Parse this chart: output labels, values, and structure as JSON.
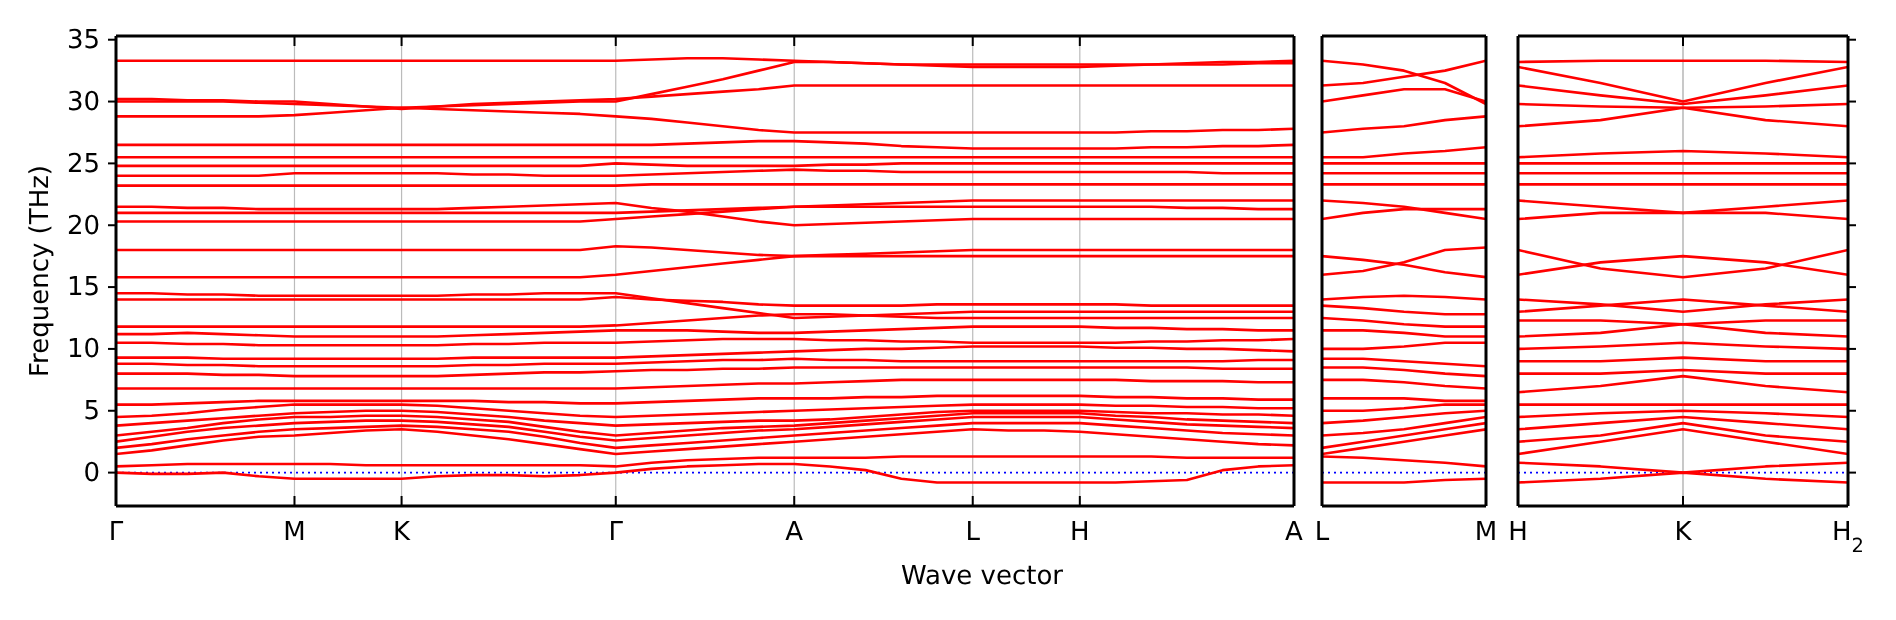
{
  "chart_data": [
    {
      "type": "line",
      "xlabel": "Wave vector",
      "ylabel": "Frequency (THz)",
      "grid": "x",
      "ylim": [
        -2.7,
        35.3
      ],
      "yticks": [
        0,
        5,
        10,
        15,
        20,
        25,
        30,
        35
      ],
      "categories": [
        "Γ",
        null,
        null,
        null,
        null,
        "M",
        null,
        null,
        "K",
        null,
        null,
        null,
        null,
        null,
        "Γ",
        null,
        null,
        null,
        null,
        "A",
        null,
        null,
        null,
        null,
        "L",
        null,
        null,
        "H",
        null,
        null,
        null,
        null,
        null,
        "A"
      ],
      "ref_lines": [
        {
          "axis": "y",
          "value": 0,
          "color": "#0000ff",
          "line_style": "dotted"
        }
      ],
      "series": [
        {
          "color": "#ff0000",
          "values": [
            0,
            -0.1,
            -0.1,
            0,
            -0.3,
            -0.5,
            -0.5,
            -0.5,
            -0.5,
            -0.3,
            -0.2,
            -0.2,
            -0.3,
            -0.2,
            0,
            0.3,
            0.5,
            0.6,
            0.7,
            0.7,
            0.5,
            0.2,
            -0.5,
            -0.8,
            -0.8,
            -0.8,
            -0.8,
            -0.8,
            -0.8,
            -0.7,
            -0.6,
            0.2,
            0.5,
            0.6
          ]
        },
        {
          "color": "#ff0000",
          "values": [
            0.5,
            0.6,
            0.7,
            0.7,
            0.7,
            0.7,
            0.7,
            0.6,
            0.6,
            0.6,
            0.6,
            0.6,
            0.6,
            0.6,
            0.5,
            0.8,
            1.0,
            1.1,
            1.2,
            1.2,
            1.2,
            1.2,
            1.3,
            1.3,
            1.3,
            1.3,
            1.3,
            1.3,
            1.3,
            1.3,
            1.2,
            1.2,
            1.2,
            1.2
          ]
        },
        {
          "color": "#ff0000",
          "values": [
            1.5,
            1.8,
            2.2,
            2.6,
            2.9,
            3.0,
            3.2,
            3.4,
            3.5,
            3.3,
            3,
            2.7,
            2.3,
            1.9,
            1.5,
            1.7,
            1.9,
            2.1,
            2.3,
            2.5,
            2.7,
            2.9,
            3.1,
            3.3,
            3.5,
            3.4,
            3.4,
            3.3,
            3.1,
            2.9,
            2.7,
            2.5,
            2.3,
            2.2
          ]
        },
        {
          "color": "#ff0000",
          "values": [
            2,
            2.3,
            2.7,
            3.0,
            3.3,
            3.5,
            3.6,
            3.7,
            3.8,
            3.7,
            3.5,
            3.3,
            2.9,
            2.4,
            2,
            2.2,
            2.4,
            2.6,
            2.8,
            3,
            3.2,
            3.4,
            3.6,
            3.8,
            4,
            4,
            4,
            4,
            3.8,
            3.6,
            3.4,
            3.2,
            3.1,
            3
          ]
        },
        {
          "color": "#ff0000",
          "values": [
            2.5,
            2.9,
            3.3,
            3.6,
            3.8,
            4,
            4.1,
            4.2,
            4.2,
            4.1,
            3.9,
            3.7,
            3.3,
            2.9,
            2.6,
            2.8,
            3,
            3.2,
            3.4,
            3.5,
            3.7,
            3.9,
            4.1,
            4.3,
            4.5,
            4.5,
            4.5,
            4.5,
            4.3,
            4.1,
            3.9,
            3.8,
            3.7,
            3.6
          ]
        },
        {
          "color": "#ff0000",
          "values": [
            3,
            3.3,
            3.6,
            4,
            4.3,
            4.5,
            4.5,
            4.6,
            4.6,
            4.5,
            4.3,
            4.1,
            3.7,
            3.3,
            3,
            3.2,
            3.4,
            3.6,
            3.7,
            3.8,
            4,
            4.2,
            4.4,
            4.6,
            4.8,
            4.8,
            4.8,
            4.8,
            4.6,
            4.5,
            4.3,
            4.2,
            4.1,
            4
          ]
        },
        {
          "color": "#ff0000",
          "values": [
            3.8,
            4,
            4.2,
            4.4,
            4.6,
            4.8,
            4.9,
            5,
            5,
            4.9,
            4.7,
            4.5,
            4.2,
            4,
            3.8,
            3.9,
            4,
            4.1,
            4.2,
            4.2,
            4.3,
            4.5,
            4.7,
            4.9,
            5,
            5,
            5,
            5,
            4.9,
            4.8,
            4.8,
            4.7,
            4.7,
            4.6
          ]
        },
        {
          "color": "#ff0000",
          "values": [
            4.5,
            4.6,
            4.8,
            5.1,
            5.3,
            5.5,
            5.5,
            5.5,
            5.5,
            5.4,
            5.2,
            5,
            4.8,
            4.6,
            4.5,
            4.6,
            4.7,
            4.8,
            4.9,
            5,
            5.1,
            5.2,
            5.3,
            5.4,
            5.5,
            5.5,
            5.5,
            5.5,
            5.4,
            5.4,
            5.3,
            5.3,
            5.2,
            5.2
          ]
        },
        {
          "color": "#ff0000",
          "values": [
            5.5,
            5.5,
            5.6,
            5.7,
            5.8,
            5.8,
            5.8,
            5.8,
            5.8,
            5.8,
            5.8,
            5.7,
            5.7,
            5.6,
            5.6,
            5.7,
            5.8,
            5.9,
            6,
            6,
            6,
            6.1,
            6.1,
            6.2,
            6.2,
            6.2,
            6.2,
            6.2,
            6.1,
            6.1,
            6,
            6,
            5.9,
            5.9
          ]
        },
        {
          "color": "#ff0000",
          "values": [
            6.8,
            6.8,
            6.8,
            6.8,
            6.8,
            6.8,
            6.8,
            6.8,
            6.8,
            6.8,
            6.8,
            6.8,
            6.8,
            6.8,
            6.8,
            6.9,
            7,
            7.1,
            7.2,
            7.2,
            7.3,
            7.4,
            7.5,
            7.5,
            7.5,
            7.5,
            7.5,
            7.5,
            7.5,
            7.4,
            7.4,
            7.4,
            7.3,
            7.3
          ]
        },
        {
          "color": "#ff0000",
          "values": [
            8,
            8,
            8,
            7.9,
            7.9,
            7.8,
            7.8,
            7.8,
            7.8,
            7.8,
            7.9,
            8,
            8.1,
            8.1,
            8.2,
            8.3,
            8.3,
            8.4,
            8.4,
            8.5,
            8.5,
            8.5,
            8.5,
            8.5,
            8.5,
            8.5,
            8.5,
            8.5,
            8.5,
            8.5,
            8.5,
            8.4,
            8.4,
            8.4
          ]
        },
        {
          "color": "#ff0000",
          "values": [
            8.8,
            8.8,
            8.7,
            8.7,
            8.6,
            8.6,
            8.6,
            8.6,
            8.6,
            8.6,
            8.7,
            8.7,
            8.8,
            8.8,
            8.8,
            8.9,
            9,
            9.1,
            9.1,
            9.2,
            9.1,
            9.1,
            9,
            9,
            9,
            9,
            9,
            9,
            9,
            9,
            9,
            9,
            9.1,
            9.1
          ]
        },
        {
          "color": "#ff0000",
          "values": [
            9.3,
            9.3,
            9.3,
            9.2,
            9.2,
            9.2,
            9.2,
            9.2,
            9.2,
            9.2,
            9.3,
            9.3,
            9.3,
            9.3,
            9.3,
            9.4,
            9.5,
            9.6,
            9.7,
            9.8,
            9.9,
            10,
            10,
            10.1,
            10.2,
            10.2,
            10.2,
            10.2,
            10.1,
            10.1,
            10,
            10,
            9.9,
            9.8
          ]
        },
        {
          "color": "#ff0000",
          "values": [
            10.5,
            10.5,
            10.4,
            10.4,
            10.3,
            10.3,
            10.3,
            10.3,
            10.3,
            10.3,
            10.4,
            10.4,
            10.5,
            10.5,
            10.5,
            10.6,
            10.7,
            10.8,
            10.8,
            10.8,
            10.7,
            10.7,
            10.6,
            10.6,
            10.5,
            10.5,
            10.5,
            10.5,
            10.5,
            10.6,
            10.6,
            10.7,
            10.7,
            10.8
          ]
        },
        {
          "color": "#ff0000",
          "values": [
            11.2,
            11.2,
            11.3,
            11.2,
            11.1,
            11,
            11,
            11,
            11,
            11,
            11.1,
            11.2,
            11.3,
            11.4,
            11.5,
            11.5,
            11.5,
            11.4,
            11.3,
            11.3,
            11.4,
            11.5,
            11.6,
            11.7,
            11.8,
            11.8,
            11.8,
            11.8,
            11.7,
            11.7,
            11.6,
            11.6,
            11.5,
            11.5
          ]
        },
        {
          "color": "#ff0000",
          "values": [
            11.8,
            11.8,
            11.8,
            11.8,
            11.8,
            11.8,
            11.8,
            11.8,
            11.8,
            11.8,
            11.8,
            11.8,
            11.8,
            11.8,
            11.9,
            12.1,
            12.3,
            12.5,
            12.7,
            12.8,
            12.8,
            12.7,
            12.6,
            12.5,
            12.5,
            12.5,
            12.5,
            12.5,
            12.5,
            12.5,
            12.5,
            12.5,
            12.5,
            12.5
          ]
        },
        {
          "color": "#ff0000",
          "values": [
            14,
            14,
            14,
            14,
            14,
            14,
            14,
            14,
            14,
            14,
            14,
            14,
            14,
            14,
            14.2,
            14,
            13.9,
            13.8,
            13.6,
            13.5,
            13.5,
            13.5,
            13.5,
            13.6,
            13.6,
            13.6,
            13.6,
            13.6,
            13.6,
            13.5,
            13.5,
            13.5,
            13.5,
            13.5
          ]
        },
        {
          "color": "#ff0000",
          "values": [
            14.5,
            14.5,
            14.4,
            14.4,
            14.3,
            14.3,
            14.3,
            14.3,
            14.3,
            14.3,
            14.4,
            14.4,
            14.5,
            14.5,
            14.5,
            14.1,
            13.7,
            13.3,
            12.9,
            12.5,
            12.6,
            12.7,
            12.8,
            12.9,
            13,
            13,
            13,
            13,
            13,
            13,
            13,
            13,
            13,
            13
          ]
        },
        {
          "color": "#ff0000",
          "values": [
            15.8,
            15.8,
            15.8,
            15.8,
            15.8,
            15.8,
            15.8,
            15.8,
            15.8,
            15.8,
            15.8,
            15.8,
            15.8,
            15.8,
            16,
            16.3,
            16.6,
            16.9,
            17.2,
            17.5,
            17.5,
            17.5,
            17.5,
            17.5,
            17.5,
            17.5,
            17.5,
            17.5,
            17.5,
            17.5,
            17.5,
            17.5,
            17.5,
            17.5
          ]
        },
        {
          "color": "#ff0000",
          "values": [
            18,
            18,
            18,
            18,
            18,
            18,
            18,
            18,
            18,
            18,
            18,
            18,
            18,
            18,
            18.3,
            18.2,
            18,
            17.8,
            17.6,
            17.5,
            17.6,
            17.7,
            17.8,
            17.9,
            18,
            18,
            18,
            18,
            18,
            18,
            18,
            18,
            18,
            18
          ]
        },
        {
          "color": "#ff0000",
          "values": [
            20.3,
            20.3,
            20.3,
            20.3,
            20.3,
            20.3,
            20.3,
            20.3,
            20.3,
            20.3,
            20.3,
            20.3,
            20.3,
            20.3,
            20.5,
            20.7,
            20.9,
            21.1,
            21.3,
            21.5,
            21.5,
            21.5,
            21.5,
            21.5,
            21.5,
            21.5,
            21.5,
            21.5,
            21.5,
            21.5,
            21.4,
            21.4,
            21.3,
            21.3
          ]
        },
        {
          "color": "#ff0000",
          "values": [
            21,
            21,
            21,
            21,
            21,
            21,
            21,
            21,
            21,
            21,
            21,
            21,
            21,
            21,
            21,
            21.1,
            21.2,
            21.3,
            21.4,
            21.5,
            21.6,
            21.7,
            21.8,
            21.9,
            22,
            22,
            22,
            22,
            22,
            22,
            22,
            22,
            22,
            22
          ]
        },
        {
          "color": "#ff0000",
          "values": [
            21.5,
            21.5,
            21.4,
            21.4,
            21.3,
            21.3,
            21.3,
            21.3,
            21.3,
            21.3,
            21.4,
            21.5,
            21.6,
            21.7,
            21.8,
            21.4,
            21.1,
            20.7,
            20.3,
            20,
            20.1,
            20.2,
            20.3,
            20.4,
            20.5,
            20.5,
            20.5,
            20.5,
            20.5,
            20.5,
            20.5,
            20.5,
            20.5,
            20.5
          ]
        },
        {
          "color": "#ff0000",
          "values": [
            23.2,
            23.2,
            23.2,
            23.2,
            23.2,
            23.2,
            23.2,
            23.2,
            23.2,
            23.2,
            23.2,
            23.2,
            23.2,
            23.2,
            23.2,
            23.3,
            23.3,
            23.3,
            23.3,
            23.3,
            23.3,
            23.3,
            23.3,
            23.3,
            23.3,
            23.3,
            23.3,
            23.3,
            23.3,
            23.3,
            23.3,
            23.3,
            23.3,
            23.3
          ]
        },
        {
          "color": "#ff0000",
          "values": [
            24,
            24,
            24,
            24,
            24,
            24.2,
            24.2,
            24.2,
            24.2,
            24.2,
            24.1,
            24.1,
            24,
            24,
            24,
            24.1,
            24.2,
            24.3,
            24.4,
            24.5,
            24.4,
            24.4,
            24.3,
            24.3,
            24.3,
            24.3,
            24.3,
            24.3,
            24.3,
            24.3,
            24.3,
            24.2,
            24.2,
            24.2
          ]
        },
        {
          "color": "#ff0000",
          "values": [
            24.8,
            24.8,
            24.8,
            24.8,
            24.8,
            24.8,
            24.8,
            24.8,
            24.8,
            24.8,
            24.8,
            24.8,
            24.8,
            24.8,
            25,
            24.9,
            24.8,
            24.8,
            24.8,
            24.8,
            24.9,
            24.9,
            25,
            25,
            25,
            25,
            25,
            25,
            25,
            25,
            25,
            25,
            25,
            25
          ]
        },
        {
          "color": "#ff0000",
          "values": [
            25.5,
            25.5,
            25.5,
            25.5,
            25.5,
            25.5,
            25.5,
            25.5,
            25.5,
            25.5,
            25.5,
            25.5,
            25.5,
            25.5,
            25.5,
            25.5,
            25.5,
            25.5,
            25.5,
            25.5,
            25.5,
            25.5,
            25.5,
            25.5,
            25.5,
            25.5,
            25.5,
            25.5,
            25.5,
            25.5,
            25.5,
            25.5,
            25.5,
            25.5
          ]
        },
        {
          "color": "#ff0000",
          "values": [
            26.5,
            26.5,
            26.5,
            26.5,
            26.5,
            26.5,
            26.5,
            26.5,
            26.5,
            26.5,
            26.5,
            26.5,
            26.5,
            26.5,
            26.5,
            26.5,
            26.6,
            26.7,
            26.8,
            26.8,
            26.7,
            26.6,
            26.4,
            26.3,
            26.2,
            26.2,
            26.2,
            26.2,
            26.2,
            26.3,
            26.3,
            26.4,
            26.4,
            26.5
          ]
        },
        {
          "color": "#ff0000",
          "values": [
            28.8,
            28.8,
            28.8,
            28.8,
            28.8,
            28.9,
            29.1,
            29.3,
            29.5,
            29.4,
            29.3,
            29.2,
            29.1,
            29,
            28.8,
            28.6,
            28.3,
            28,
            27.7,
            27.5,
            27.5,
            27.5,
            27.5,
            27.5,
            27.5,
            27.5,
            27.5,
            27.5,
            27.5,
            27.6,
            27.6,
            27.7,
            27.7,
            27.8
          ]
        },
        {
          "color": "#ff0000",
          "values": [
            30,
            30,
            30,
            30,
            29.9,
            29.8,
            29.7,
            29.6,
            29.5,
            29.6,
            29.7,
            29.8,
            29.9,
            30,
            30,
            30.6,
            31.2,
            31.8,
            32.5,
            33.2,
            33.2,
            33.1,
            33,
            33,
            33,
            33,
            33,
            33,
            33,
            33,
            33,
            33,
            33.1,
            33.1
          ]
        },
        {
          "color": "#ff0000",
          "values": [
            30.2,
            30.2,
            30.1,
            30.1,
            30,
            30,
            29.8,
            29.6,
            29.4,
            29.6,
            29.8,
            29.9,
            30,
            30.1,
            30.2,
            30.4,
            30.6,
            30.8,
            31,
            31.3,
            31.3,
            31.3,
            31.3,
            31.3,
            31.3,
            31.3,
            31.3,
            31.3,
            31.3,
            31.3,
            31.3,
            31.3,
            31.3,
            31.3
          ]
        },
        {
          "color": "#ff0000",
          "values": [
            33.3,
            33.3,
            33.3,
            33.3,
            33.3,
            33.3,
            33.3,
            33.3,
            33.3,
            33.3,
            33.3,
            33.3,
            33.3,
            33.3,
            33.3,
            33.4,
            33.5,
            33.5,
            33.4,
            33.3,
            33.2,
            33.1,
            33,
            32.9,
            32.8,
            32.8,
            32.8,
            32.8,
            32.9,
            33,
            33.1,
            33.2,
            33.2,
            33.3
          ]
        }
      ]
    },
    {
      "type": "line",
      "tick_labels": "x",
      "ylim": [
        -2.7,
        35.3
      ],
      "yticks": [
        0,
        5,
        10,
        15,
        20,
        25,
        30,
        35
      ],
      "categories": [
        "L",
        null,
        null,
        null,
        "M"
      ],
      "ref_lines": [
        {
          "axis": "y",
          "value": 0,
          "color": "#0000ff",
          "line_style": "dotted"
        }
      ],
      "series": [
        {
          "color": "#ff0000",
          "values": [
            -0.8,
            -0.8,
            -0.8,
            -0.6,
            -0.5
          ]
        },
        {
          "color": "#ff0000",
          "values": [
            1.3,
            1.2,
            1,
            0.8,
            0.5
          ]
        },
        {
          "color": "#ff0000",
          "values": [
            1.5,
            2,
            2.5,
            3,
            3.5
          ]
        },
        {
          "color": "#ff0000",
          "values": [
            2,
            2.5,
            3,
            3.5,
            4
          ]
        },
        {
          "color": "#ff0000",
          "values": [
            3,
            3.2,
            3.5,
            4,
            4.5
          ]
        },
        {
          "color": "#ff0000",
          "values": [
            4,
            4.2,
            4.5,
            4.8,
            5
          ]
        },
        {
          "color": "#ff0000",
          "values": [
            5,
            5,
            5.2,
            5.5,
            5.5
          ]
        },
        {
          "color": "#ff0000",
          "values": [
            6,
            6,
            6,
            5.8,
            5.8
          ]
        },
        {
          "color": "#ff0000",
          "values": [
            7.5,
            7.5,
            7.3,
            7,
            6.8
          ]
        },
        {
          "color": "#ff0000",
          "values": [
            8.5,
            8.5,
            8.3,
            8,
            7.8
          ]
        },
        {
          "color": "#ff0000",
          "values": [
            9.2,
            9.2,
            9,
            8.8,
            8.6
          ]
        },
        {
          "color": "#ff0000",
          "values": [
            10,
            10,
            10.2,
            10.5,
            10.5
          ]
        },
        {
          "color": "#ff0000",
          "values": [
            11.5,
            11.5,
            11.3,
            11,
            11
          ]
        },
        {
          "color": "#ff0000",
          "values": [
            12.5,
            12.3,
            12,
            11.8,
            11.8
          ]
        },
        {
          "color": "#ff0000",
          "values": [
            13.5,
            13.3,
            13,
            12.8,
            12.8
          ]
        },
        {
          "color": "#ff0000",
          "values": [
            14,
            14.2,
            14.3,
            14.2,
            14
          ]
        },
        {
          "color": "#ff0000",
          "values": [
            16,
            16.3,
            17,
            18,
            18.2
          ]
        },
        {
          "color": "#ff0000",
          "values": [
            17.5,
            17.2,
            16.8,
            16.2,
            15.8
          ]
        },
        {
          "color": "#ff0000",
          "values": [
            20.5,
            21,
            21.3,
            21.3,
            21.3
          ]
        },
        {
          "color": "#ff0000",
          "values": [
            22,
            21.8,
            21.5,
            21,
            20.5
          ]
        },
        {
          "color": "#ff0000",
          "values": [
            23.3,
            23.3,
            23.3,
            23.3,
            23.3
          ]
        },
        {
          "color": "#ff0000",
          "values": [
            24.2,
            24.2,
            24.2,
            24.2,
            24.2
          ]
        },
        {
          "color": "#ff0000",
          "values": [
            25,
            25,
            25,
            25,
            25
          ]
        },
        {
          "color": "#ff0000",
          "values": [
            25.5,
            25.5,
            25.8,
            26,
            26.3
          ]
        },
        {
          "color": "#ff0000",
          "values": [
            27.5,
            27.8,
            28,
            28.5,
            28.8
          ]
        },
        {
          "color": "#ff0000",
          "values": [
            30,
            30.5,
            31,
            31,
            30
          ]
        },
        {
          "color": "#ff0000",
          "values": [
            31.3,
            31.5,
            32,
            32.5,
            33.3
          ]
        },
        {
          "color": "#ff0000",
          "values": [
            33.3,
            33,
            32.5,
            31.5,
            29.8
          ]
        }
      ]
    },
    {
      "type": "line",
      "tick_labels": "x",
      "ylim": [
        -2.7,
        35.3
      ],
      "yticks": [
        0,
        5,
        10,
        15,
        20,
        25,
        30,
        35
      ],
      "categories": [
        "H",
        null,
        "K",
        null,
        "H$_{2}$"
      ],
      "ref_lines": [
        {
          "axis": "y",
          "value": 0,
          "color": "#0000ff",
          "line_style": "dotted"
        },
        {
          "axis": "x",
          "value": "K",
          "color": "#bbbbbb",
          "line_style": "solid"
        }
      ],
      "series": [
        {
          "color": "#ff0000",
          "values": [
            -0.8,
            -0.5,
            0,
            -0.5,
            -0.8
          ]
        },
        {
          "color": "#ff0000",
          "values": [
            0.8,
            0.5,
            0,
            0.5,
            0.8
          ]
        },
        {
          "color": "#ff0000",
          "values": [
            1.5,
            2.5,
            3.5,
            2.5,
            1.5
          ]
        },
        {
          "color": "#ff0000",
          "values": [
            2.5,
            3,
            4,
            3,
            2.5
          ]
        },
        {
          "color": "#ff0000",
          "values": [
            3.5,
            4,
            4.5,
            4,
            3.5
          ]
        },
        {
          "color": "#ff0000",
          "values": [
            4.5,
            4.8,
            5,
            4.8,
            4.5
          ]
        },
        {
          "color": "#ff0000",
          "values": [
            5.5,
            5.5,
            5.5,
            5.5,
            5.5
          ]
        },
        {
          "color": "#ff0000",
          "values": [
            6.5,
            7,
            7.8,
            7,
            6.5
          ]
        },
        {
          "color": "#ff0000",
          "values": [
            8,
            8,
            8.3,
            8,
            8
          ]
        },
        {
          "color": "#ff0000",
          "values": [
            9,
            9,
            9.3,
            9,
            9
          ]
        },
        {
          "color": "#ff0000",
          "values": [
            10,
            10.2,
            10.5,
            10.2,
            10
          ]
        },
        {
          "color": "#ff0000",
          "values": [
            11,
            11.3,
            12,
            11.3,
            11
          ]
        },
        {
          "color": "#ff0000",
          "values": [
            12.3,
            12.3,
            12,
            12.3,
            12.3
          ]
        },
        {
          "color": "#ff0000",
          "values": [
            13,
            13.5,
            14,
            13.5,
            13
          ]
        },
        {
          "color": "#ff0000",
          "values": [
            14,
            13.6,
            13,
            13.6,
            14
          ]
        },
        {
          "color": "#ff0000",
          "values": [
            16,
            17,
            17.5,
            17,
            16
          ]
        },
        {
          "color": "#ff0000",
          "values": [
            18,
            16.5,
            15.8,
            16.5,
            18
          ]
        },
        {
          "color": "#ff0000",
          "values": [
            20.5,
            21,
            21,
            21,
            20.5
          ]
        },
        {
          "color": "#ff0000",
          "values": [
            22,
            21.5,
            21,
            21.5,
            22
          ]
        },
        {
          "color": "#ff0000",
          "values": [
            23.3,
            23.3,
            23.3,
            23.3,
            23.3
          ]
        },
        {
          "color": "#ff0000",
          "values": [
            24.2,
            24.2,
            24.2,
            24.2,
            24.2
          ]
        },
        {
          "color": "#ff0000",
          "values": [
            25,
            25,
            25,
            25,
            25
          ]
        },
        {
          "color": "#ff0000",
          "values": [
            25.5,
            25.8,
            26,
            25.8,
            25.5
          ]
        },
        {
          "color": "#ff0000",
          "values": [
            28,
            28.5,
            29.5,
            28.5,
            28
          ]
        },
        {
          "color": "#ff0000",
          "values": [
            29.8,
            29.6,
            29.5,
            29.6,
            29.8
          ]
        },
        {
          "color": "#ff0000",
          "values": [
            31.3,
            30.5,
            29.8,
            30.5,
            31.3
          ]
        },
        {
          "color": "#ff0000",
          "values": [
            32.8,
            31.5,
            30,
            31.5,
            32.8
          ]
        },
        {
          "color": "#ff0000",
          "values": [
            33.2,
            33.3,
            33.3,
            33.3,
            33.2
          ]
        }
      ]
    }
  ]
}
